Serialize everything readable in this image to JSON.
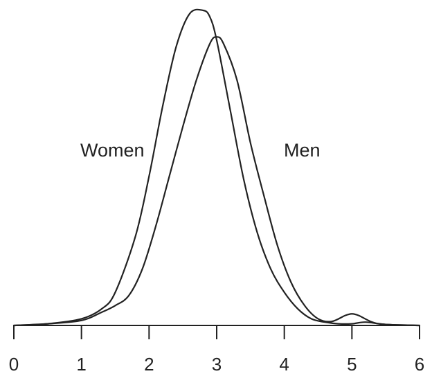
{
  "chart_data": {
    "type": "line",
    "title": "",
    "xlabel": "",
    "ylabel": "",
    "xlim": [
      0,
      6
    ],
    "ylim": [
      0,
      0.95
    ],
    "grid": false,
    "y_axis_shown": false,
    "x_ticks": [
      0,
      1,
      2,
      3,
      4,
      5,
      6
    ],
    "x_tick_labels": [
      "0",
      "1",
      "2",
      "3",
      "4",
      "5",
      "6"
    ],
    "line_color": "#222222",
    "series": [
      {
        "name": "Women",
        "x": [
          0,
          0.5,
          1.0,
          1.3,
          1.5,
          1.8,
          2.0,
          2.2,
          2.4,
          2.6,
          2.8,
          2.9,
          3.0,
          3.2,
          3.4,
          3.6,
          3.8,
          4.0,
          4.2,
          4.4,
          4.6,
          4.8,
          5.0,
          5.2,
          5.5,
          6.0
        ],
        "y": [
          0.0,
          0.005,
          0.02,
          0.05,
          0.1,
          0.27,
          0.45,
          0.66,
          0.84,
          0.94,
          0.95,
          0.93,
          0.86,
          0.65,
          0.44,
          0.28,
          0.17,
          0.1,
          0.05,
          0.02,
          0.01,
          0.005,
          0.005,
          0.01,
          0.003,
          0.0
        ]
      },
      {
        "name": "Men",
        "x": [
          0,
          0.5,
          1.0,
          1.3,
          1.5,
          1.7,
          1.9,
          2.1,
          2.3,
          2.5,
          2.7,
          2.9,
          3.0,
          3.1,
          3.3,
          3.5,
          3.7,
          3.9,
          4.1,
          4.3,
          4.5,
          4.7,
          4.9,
          5.0,
          5.1,
          5.3,
          5.5,
          6.0
        ],
        "y": [
          0.0,
          0.005,
          0.015,
          0.04,
          0.06,
          0.09,
          0.17,
          0.3,
          0.45,
          0.6,
          0.74,
          0.85,
          0.87,
          0.85,
          0.74,
          0.55,
          0.39,
          0.24,
          0.13,
          0.06,
          0.02,
          0.012,
          0.03,
          0.035,
          0.03,
          0.01,
          0.003,
          0.0
        ]
      }
    ]
  }
}
